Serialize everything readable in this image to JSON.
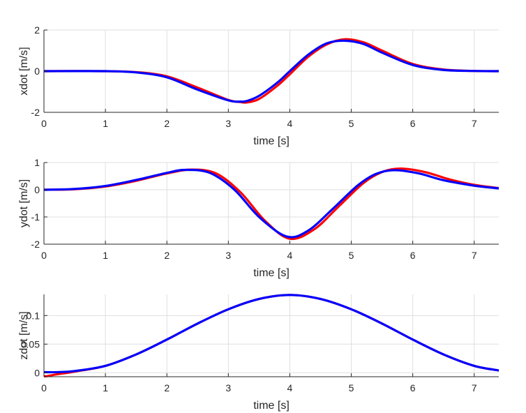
{
  "chart_data": [
    {
      "type": "line",
      "xlabel": "time [s]",
      "ylabel": "xdot [m/s]",
      "xlim": [
        0,
        7.4
      ],
      "ylim": [
        -2,
        2
      ],
      "xticks": [
        0,
        1,
        2,
        3,
        4,
        5,
        6,
        7
      ],
      "yticks": [
        -2,
        0,
        2
      ],
      "grid": true,
      "series": [
        {
          "color": "#ff0000",
          "x": [
            0,
            1,
            1.5,
            2,
            2.5,
            3,
            3.2,
            3.3,
            3.5,
            3.8,
            4,
            4.3,
            4.6,
            4.9,
            5.2,
            5.5,
            6,
            6.5,
            7,
            7.4
          ],
          "y": [
            0,
            0,
            -0.05,
            -0.25,
            -0.8,
            -1.4,
            -1.5,
            -1.52,
            -1.35,
            -0.7,
            -0.15,
            0.7,
            1.3,
            1.55,
            1.4,
            1.0,
            0.35,
            0.08,
            0.01,
            0
          ]
        },
        {
          "color": "#0000ff",
          "x": [
            0,
            1,
            1.5,
            2,
            2.5,
            3,
            3.2,
            3.3,
            3.5,
            3.8,
            4,
            4.3,
            4.6,
            4.9,
            5.2,
            5.5,
            6,
            6.5,
            7,
            7.4
          ],
          "y": [
            0,
            0,
            -0.06,
            -0.3,
            -0.9,
            -1.42,
            -1.48,
            -1.45,
            -1.2,
            -0.55,
            0,
            0.8,
            1.35,
            1.48,
            1.32,
            0.9,
            0.3,
            0.06,
            0.01,
            0
          ]
        }
      ]
    },
    {
      "type": "line",
      "xlabel": "time [s]",
      "ylabel": "ydot [m/s]",
      "xlim": [
        0,
        7.4
      ],
      "ylim": [
        -2,
        1
      ],
      "xticks": [
        0,
        1,
        2,
        3,
        4,
        5,
        6,
        7
      ],
      "yticks": [
        -2,
        -1,
        0,
        1
      ],
      "grid": true,
      "series": [
        {
          "color": "#ff0000",
          "x": [
            0,
            0.5,
            1,
            1.5,
            2,
            2.4,
            2.8,
            3.2,
            3.6,
            4,
            4.4,
            4.8,
            5.2,
            5.5,
            5.8,
            6.2,
            6.6,
            7,
            7.4
          ],
          "y": [
            0,
            0.02,
            0.12,
            0.33,
            0.6,
            0.74,
            0.6,
            -0.1,
            -1.15,
            -1.8,
            -1.45,
            -0.6,
            0.25,
            0.65,
            0.78,
            0.65,
            0.38,
            0.18,
            0.06
          ]
        },
        {
          "color": "#0000ff",
          "x": [
            0,
            0.5,
            1,
            1.5,
            2,
            2.3,
            2.7,
            3.1,
            3.5,
            3.95,
            4.3,
            4.7,
            5.1,
            5.4,
            5.7,
            6.1,
            6.5,
            7,
            7.4
          ],
          "y": [
            0,
            0.03,
            0.14,
            0.36,
            0.62,
            0.73,
            0.62,
            0.0,
            -1.0,
            -1.72,
            -1.5,
            -0.7,
            0.15,
            0.58,
            0.72,
            0.6,
            0.35,
            0.15,
            0.05
          ]
        }
      ]
    },
    {
      "type": "line",
      "xlabel": "time [s]",
      "ylabel": "zdot [m/s]",
      "xlim": [
        0,
        7.4
      ],
      "ylim": [
        -0.007,
        0.137
      ],
      "xticks": [
        0,
        1,
        2,
        3,
        4,
        5,
        6,
        7
      ],
      "yticks": [
        0,
        0.05,
        0.1
      ],
      "ytick_labels": [
        "0",
        "0.05",
        "0.1"
      ],
      "grid": true,
      "series": [
        {
          "color": "#ff0000",
          "x": [
            0,
            0.05,
            0.2,
            0.5,
            1,
            1.5,
            2,
            2.5,
            3,
            3.5,
            4,
            4.5,
            5,
            5.5,
            6,
            6.5,
            7,
            7.4
          ],
          "y": [
            -0.006,
            -0.006,
            -0.003,
            0.002,
            0.012,
            0.032,
            0.058,
            0.086,
            0.111,
            0.129,
            0.136,
            0.129,
            0.111,
            0.086,
            0.058,
            0.032,
            0.012,
            0.004
          ]
        },
        {
          "color": "#0000ff",
          "x": [
            0,
            0.2,
            0.5,
            1,
            1.5,
            2,
            2.5,
            3,
            3.5,
            4,
            4.5,
            5,
            5.5,
            6,
            6.5,
            7,
            7.4
          ],
          "y": [
            0.001,
            0.001,
            0.003,
            0.012,
            0.032,
            0.058,
            0.086,
            0.111,
            0.129,
            0.136,
            0.129,
            0.111,
            0.086,
            0.058,
            0.032,
            0.012,
            0.004
          ]
        }
      ]
    }
  ]
}
